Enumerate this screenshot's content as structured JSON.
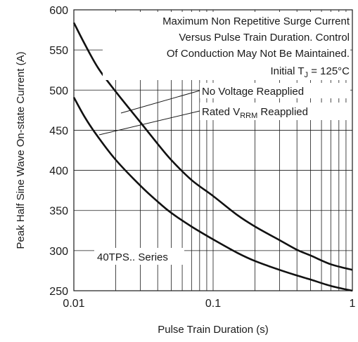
{
  "chart_data": {
    "type": "line",
    "title": "",
    "xlabel": "Pulse Train Duration (s)",
    "ylabel": "Peak Half Sine Wave On-state Current (A)",
    "x_scale": "log",
    "xlim": [
      0.01,
      1
    ],
    "ylim": [
      250,
      600
    ],
    "grid": true,
    "x_ticks": [
      "0.01",
      "0.1",
      "1"
    ],
    "y_ticks": [
      "250",
      "300",
      "350",
      "400",
      "450",
      "500",
      "550",
      "600"
    ],
    "annotations": {
      "title_lines": [
        "Maximum Non Repetitive Surge Current",
        "Versus Pulse Train Duration. Control",
        "Of Conduction May Not Be Maintained."
      ],
      "initial_tj_prefix": "Initial T",
      "initial_tj_sub": "J",
      "initial_tj_suffix": " = 125°C",
      "series_no_voltage": "No Voltage Reapplied",
      "series_rated_prefix": "Rated V",
      "series_rated_sub": "RRM",
      "series_rated_suffix": " Reapplied",
      "series_label": "40TPS.. Series"
    },
    "series": [
      {
        "name": "No Voltage Reapplied",
        "x": [
          0.01,
          0.012,
          0.015,
          0.02,
          0.03,
          0.04,
          0.05,
          0.07,
          0.1,
          0.15,
          0.2,
          0.3,
          0.4,
          0.5,
          0.7,
          1.0
        ],
        "y": [
          584,
          557,
          527,
          498,
          460,
          433,
          413,
          388,
          368,
          344,
          330,
          313,
          301,
          294,
          283,
          276
        ]
      },
      {
        "name": "Rated VRRM Reapplied",
        "x": [
          0.01,
          0.012,
          0.015,
          0.02,
          0.03,
          0.04,
          0.05,
          0.07,
          0.1,
          0.15,
          0.2,
          0.3,
          0.4,
          0.5,
          0.7,
          1.0
        ],
        "y": [
          491,
          466,
          441,
          413,
          381,
          361,
          347,
          330,
          314,
          297,
          287,
          276,
          269,
          264,
          256,
          250
        ]
      }
    ]
  }
}
